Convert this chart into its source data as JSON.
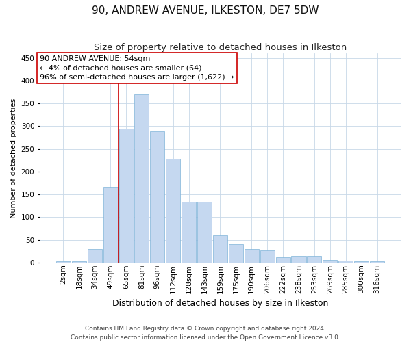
{
  "title": "90, ANDREW AVENUE, ILKESTON, DE7 5DW",
  "subtitle": "Size of property relative to detached houses in Ilkeston",
  "xlabel": "Distribution of detached houses by size in Ilkeston",
  "ylabel": "Number of detached properties",
  "bar_labels": [
    "2sqm",
    "18sqm",
    "34sqm",
    "49sqm",
    "65sqm",
    "81sqm",
    "96sqm",
    "112sqm",
    "128sqm",
    "143sqm",
    "159sqm",
    "175sqm",
    "190sqm",
    "206sqm",
    "222sqm",
    "238sqm",
    "253sqm",
    "269sqm",
    "285sqm",
    "300sqm",
    "316sqm"
  ],
  "bar_values": [
    2,
    2,
    30,
    165,
    295,
    370,
    288,
    228,
    133,
    133,
    60,
    41,
    30,
    26,
    12,
    14,
    14,
    6,
    4,
    2,
    2
  ],
  "bar_color": "#C5D8F0",
  "bar_edge_color": "#7EB3D8",
  "property_line_color": "#CC0000",
  "line_x_index": 3.5,
  "annotation_text": "90 ANDREW AVENUE: 54sqm\n← 4% of detached houses are smaller (64)\n96% of semi-detached houses are larger (1,622) →",
  "annotation_box_color": "#CC0000",
  "ylim": [
    0,
    460
  ],
  "yticks": [
    0,
    50,
    100,
    150,
    200,
    250,
    300,
    350,
    400,
    450
  ],
  "footer_line1": "Contains HM Land Registry data © Crown copyright and database right 2024.",
  "footer_line2": "Contains public sector information licensed under the Open Government Licence v3.0.",
  "bg_color": "#FFFFFF",
  "grid_color": "#C8D8E8",
  "title_fontsize": 11,
  "subtitle_fontsize": 9.5,
  "xlabel_fontsize": 9,
  "ylabel_fontsize": 8,
  "tick_fontsize": 7.5,
  "annotation_fontsize": 8,
  "footer_fontsize": 6.5
}
